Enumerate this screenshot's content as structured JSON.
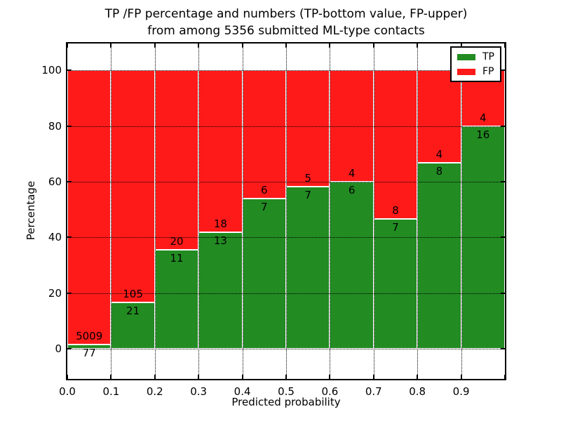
{
  "title": {
    "line1": "TP /FP percentage and numbers (TP-bottom value, FP-upper)",
    "line2": "from among 5356 submitted ML-type contacts"
  },
  "chart_data": {
    "type": "bar",
    "stacked": true,
    "normalized_to": "percent",
    "bin_edges": [
      0.0,
      0.1,
      0.2,
      0.3,
      0.4,
      0.5,
      0.6,
      0.7,
      0.8,
      0.9,
      1.0
    ],
    "series": [
      {
        "name": "TP",
        "color": "#228b22",
        "counts": [
          77,
          21,
          11,
          13,
          7,
          7,
          6,
          7,
          8,
          16
        ]
      },
      {
        "name": "FP",
        "color": "#ff1a1a",
        "counts": [
          5009,
          105,
          20,
          18,
          6,
          5,
          4,
          8,
          4,
          4
        ]
      }
    ],
    "tp_percent_of_bin": [
      1.51,
      16.67,
      35.48,
      41.94,
      53.85,
      58.33,
      60.0,
      46.67,
      66.67,
      80.0
    ],
    "xlabel": "Predicted probability",
    "ylabel": "Percentage",
    "x_tick_labels": [
      "0.0",
      "0.1",
      "0.2",
      "0.3",
      "0.4",
      "0.5",
      "0.6",
      "0.7",
      "0.8",
      "0.9"
    ],
    "y_tick_values": [
      0,
      20,
      40,
      60,
      80,
      100
    ],
    "y_tick_labels": [
      "0",
      "20",
      "40",
      "60",
      "80",
      "100"
    ],
    "xlim": [
      0.0,
      1.0
    ],
    "ylim": [
      -10.8,
      109.6
    ],
    "grid": "dotted-black",
    "bar_edge_color": "#ffffff",
    "legend": {
      "position": "upper-right",
      "entries": [
        {
          "label": "TP",
          "color": "#228b22"
        },
        {
          "label": "FP",
          "color": "#ff1a1a"
        }
      ]
    }
  }
}
